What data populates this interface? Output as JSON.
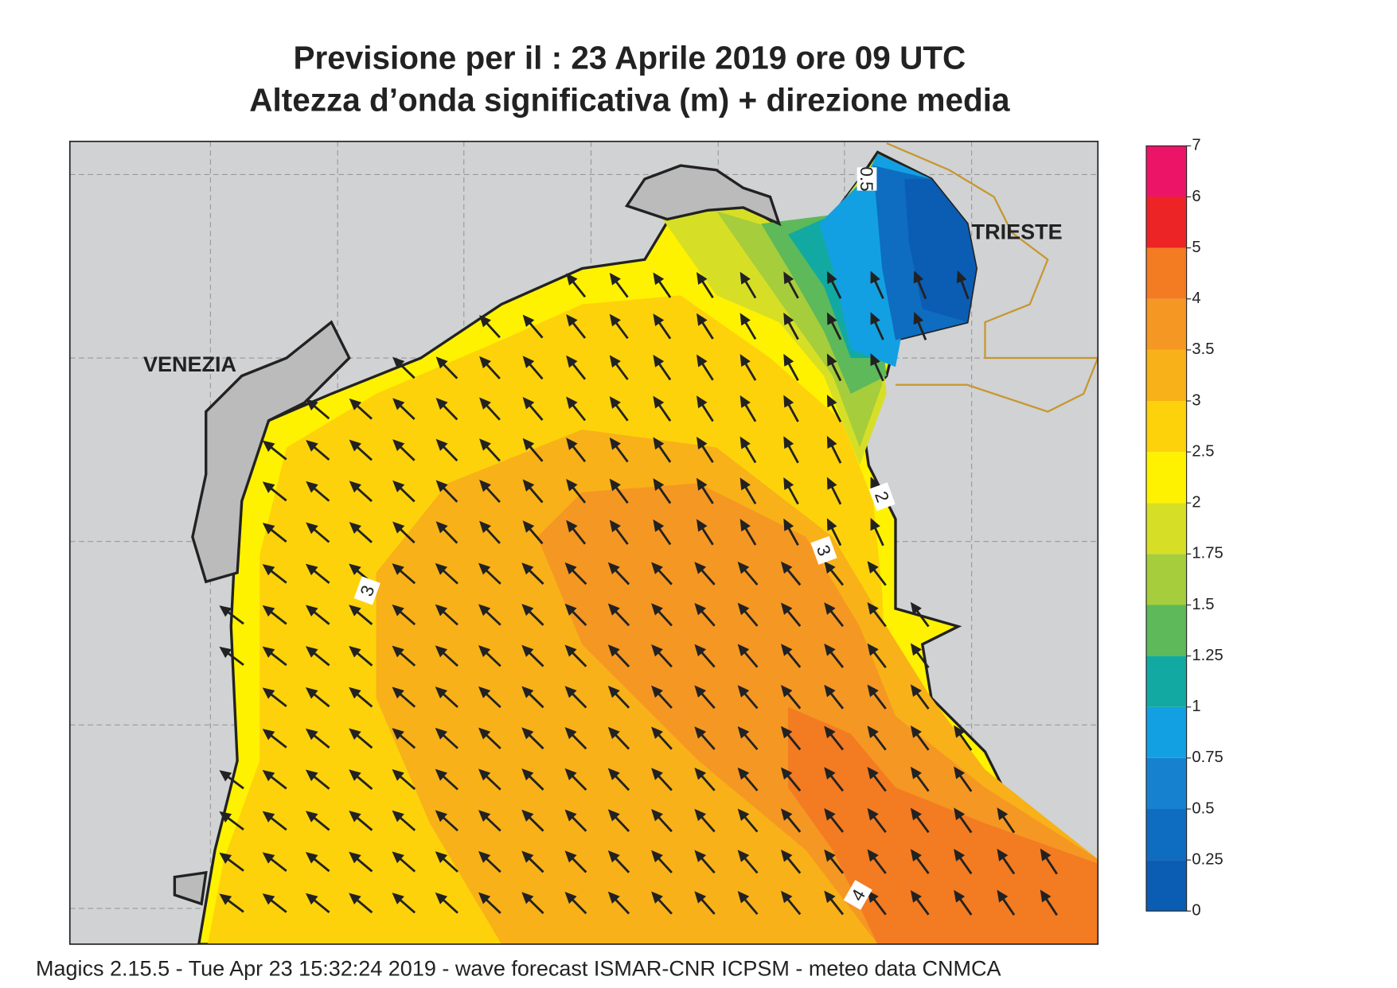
{
  "header": {
    "title_line1": "Previsione per il  :  23   Aprile  2019   ore 09 UTC",
    "title_line2": "Altezza d’onda significativa (m) + direzione media"
  },
  "map": {
    "places": [
      "VENEZIA",
      "TRIESTE"
    ],
    "contour_labels": [
      "0.5",
      "2",
      "3",
      "3",
      "4"
    ]
  },
  "colorbar": {
    "ticks": [
      0,
      0.25,
      0.5,
      0.75,
      1,
      1.25,
      1.5,
      1.75,
      2,
      2.5,
      3,
      3.5,
      4,
      5,
      6,
      7
    ],
    "colors": [
      "#0b5cb3",
      "#0e6dc0",
      "#1682cf",
      "#13a0e2",
      "#12a9a2",
      "#5db95a",
      "#a6cd3b",
      "#d6df26",
      "#fff200",
      "#fdd20b",
      "#f8b118",
      "#f59723",
      "#f37b21",
      "#ec2426",
      "#ec1466"
    ]
  },
  "footer": "Magics 2.15.5 - Tue Apr 23 15:32:24 2019 - wave forecast  ISMAR-CNR  ICPSM - meteo data   CNMCA"
}
